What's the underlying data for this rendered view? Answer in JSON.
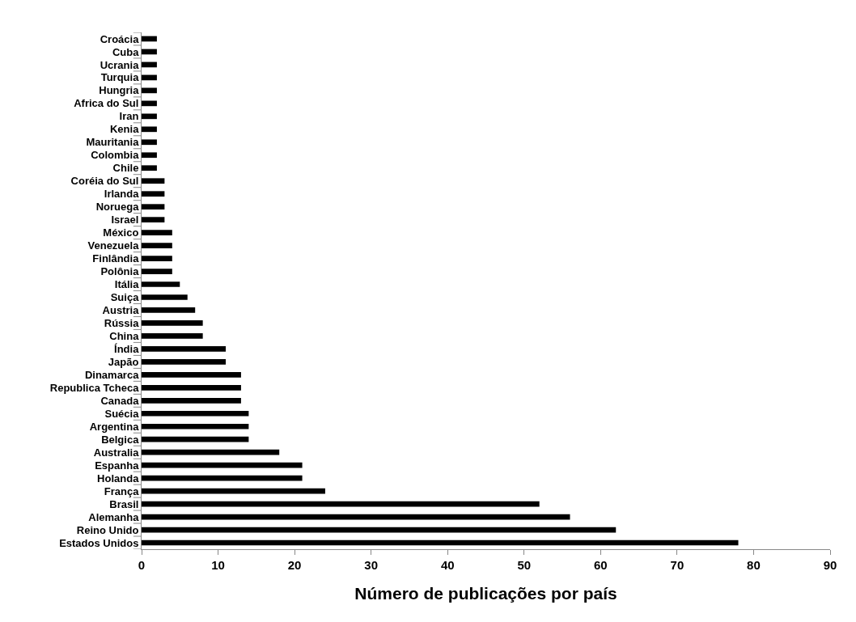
{
  "chart_data": {
    "type": "bar",
    "orientation": "horizontal",
    "xlabel": "Número de publicações por país",
    "categories": [
      "Croácia",
      "Cuba",
      "Ucrania",
      "Turquia",
      "Hungria",
      "Africa do Sul",
      "Iran",
      "Kenia",
      "Mauritania",
      "Colombia",
      "Chile",
      "Coréia do Sul",
      "Irlanda",
      "Noruega",
      "Israel",
      "México",
      "Venezuela",
      "Finlândia",
      "Polônia",
      "Itália",
      "Suiça",
      "Austria",
      "Rússia",
      "China",
      "Índia",
      "Japão",
      "Dinamarca",
      "Republica Tcheca",
      "Canada",
      "Suécia",
      "Argentina",
      "Belgica",
      "Australia",
      "Espanha",
      "Holanda",
      "França",
      "Brasil",
      "Alemanha",
      "Reino Unido",
      "Estados Unidos"
    ],
    "values": [
      2,
      2,
      2,
      2,
      2,
      2,
      2,
      2,
      2,
      2,
      2,
      3,
      3,
      3,
      3,
      4,
      4,
      4,
      4,
      5,
      6,
      7,
      8,
      8,
      11,
      11,
      13,
      13,
      13,
      14,
      14,
      14,
      18,
      21,
      21,
      24,
      52,
      56,
      62,
      78
    ],
    "color": "#000000",
    "xlim": [
      0,
      90
    ],
    "xticks": [
      0,
      10,
      20,
      30,
      40,
      50,
      60,
      70,
      80,
      90
    ]
  }
}
